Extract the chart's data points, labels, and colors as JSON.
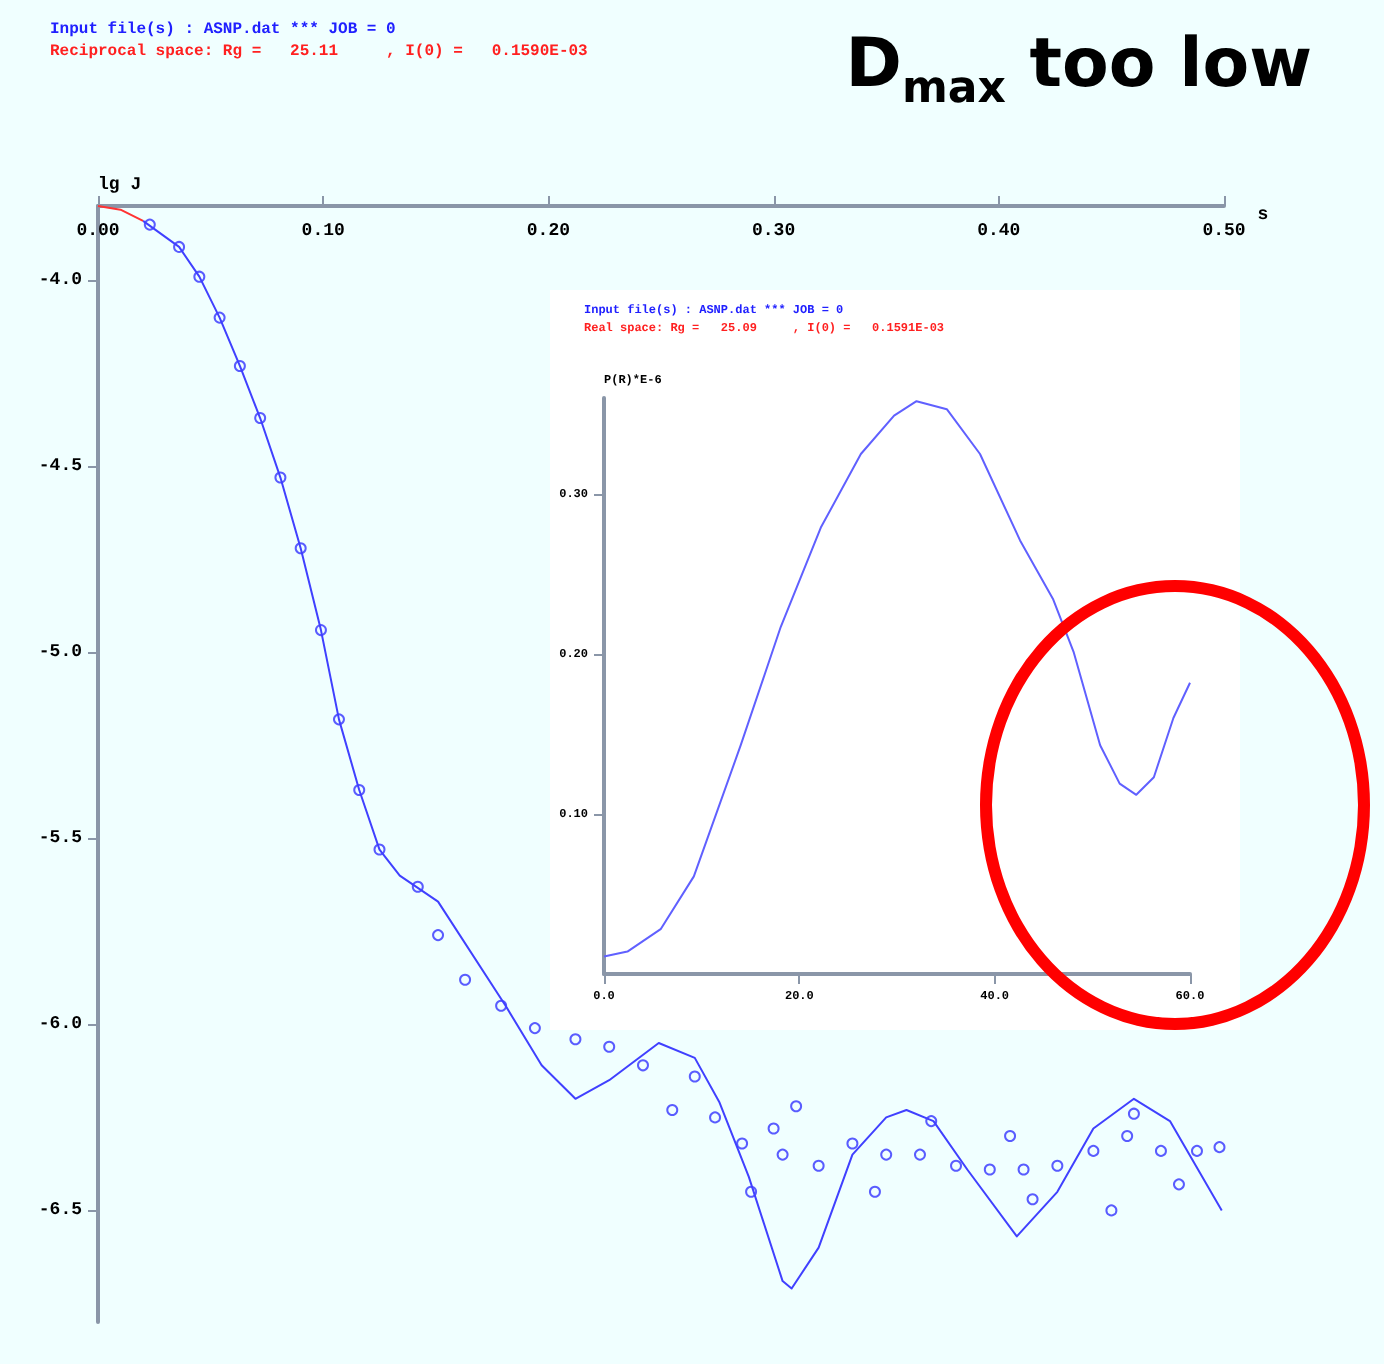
{
  "chart_data": [
    {
      "type": "scatter",
      "title": "Input file(s) : ASNP.dat *** JOB = 0",
      "subtitle": "Reciprocal space: Rg =   25.11     , I(0) =   0.1590E-03",
      "annotations": [
        "D$_{max}$ too low"
      ],
      "xlabel": "s",
      "ylabel": "lg J",
      "xlim": [
        0,
        0.5
      ],
      "ylim": [
        -6.8,
        -3.8
      ],
      "xticks": [
        {
          "value": 0,
          "label": "0.00"
        },
        {
          "value": 0.1,
          "label": "0.10"
        },
        {
          "value": 0.2,
          "label": "0.20"
        },
        {
          "value": 0.3,
          "label": "0.30"
        },
        {
          "value": 0.4,
          "label": "0.40"
        },
        {
          "value": 0.5,
          "label": "0.50"
        }
      ],
      "yticks": [
        {
          "value": -4,
          "label": "-4.0"
        },
        {
          "value": -4.5,
          "label": "-4.5"
        },
        {
          "value": -5,
          "label": "-5.0"
        },
        {
          "value": -5.5,
          "label": "-5.5"
        },
        {
          "value": -6,
          "label": "-6.0"
        },
        {
          "value": -6.5,
          "label": "-6.5"
        }
      ],
      "series": [
        {
          "type": "scatter",
          "marker": "circle",
          "color": "#3333ff",
          "x": [
            0.023,
            0.036,
            0.045,
            0.054,
            0.063,
            0.072,
            0.081,
            0.09,
            0.099,
            0.107,
            0.116,
            0.125,
            0.142,
            0.151,
            0.163,
            0.179,
            0.194,
            0.212,
            0.227,
            0.242,
            0.255,
            0.265,
            0.274,
            0.286,
            0.29,
            0.3,
            0.304,
            0.31,
            0.32,
            0.335,
            0.345,
            0.35,
            0.365,
            0.37,
            0.381,
            0.396,
            0.405,
            0.411,
            0.415,
            0.426,
            0.442,
            0.45,
            0.457,
            0.46,
            0.472,
            0.48,
            0.488,
            0.498
          ],
          "values": [
            -3.85,
            -3.91,
            -3.99,
            -4.1,
            -4.23,
            -4.37,
            -4.53,
            -4.72,
            -4.94,
            -5.18,
            -5.37,
            -5.53,
            -5.63,
            -5.76,
            -5.88,
            -5.95,
            -6.01,
            -6.04,
            -6.06,
            -6.11,
            -6.23,
            -6.14,
            -6.25,
            -6.32,
            -6.45,
            -6.28,
            -6.35,
            -6.22,
            -6.38,
            -6.32,
            -6.45,
            -6.35,
            -6.35,
            -6.26,
            -6.38,
            -6.39,
            -6.3,
            -6.39,
            -6.47,
            -6.38,
            -6.34,
            -6.5,
            -6.3,
            -6.24,
            -6.34,
            -6.43,
            -6.34,
            -6.33
          ]
        },
        {
          "type": "line",
          "marker": "none",
          "color": "#4040ff",
          "x": [
            0.02,
            0.036,
            0.045,
            0.054,
            0.063,
            0.072,
            0.081,
            0.09,
            0.099,
            0.107,
            0.116,
            0.125,
            0.134,
            0.151,
            0.181,
            0.197,
            0.212,
            0.227,
            0.249,
            0.265,
            0.276,
            0.289,
            0.304,
            0.308,
            0.32,
            0.335,
            0.35,
            0.359,
            0.371,
            0.386,
            0.408,
            0.426,
            0.442,
            0.46,
            0.476,
            0.499
          ],
          "values": [
            -3.84,
            -3.91,
            -3.99,
            -4.1,
            -4.23,
            -4.37,
            -4.53,
            -4.72,
            -4.94,
            -5.18,
            -5.37,
            -5.53,
            -5.6,
            -5.67,
            -5.95,
            -6.11,
            -6.2,
            -6.15,
            -6.05,
            -6.09,
            -6.21,
            -6.41,
            -6.69,
            -6.71,
            -6.6,
            -6.35,
            -6.25,
            -6.23,
            -6.26,
            -6.39,
            -6.57,
            -6.45,
            -6.28,
            -6.2,
            -6.26,
            -6.5
          ]
        },
        {
          "type": "line",
          "marker": "none",
          "color": "#ff3333",
          "x": [
            0,
            0.01,
            0.02
          ],
          "values": [
            -3.8,
            -3.81,
            -3.84
          ]
        }
      ]
    },
    {
      "type": "line",
      "title": "Input file(s) : ASNP.dat *** JOB = 0",
      "subtitle": "Real space: Rg =   25.09     , I(0) =   0.1591E-03",
      "ylabel": "P(R)*E-6",
      "xlim": [
        0,
        60
      ],
      "ylim": [
        0,
        0.36
      ],
      "xticks": [
        {
          "value": 0,
          "label": "0.0"
        },
        {
          "value": 20,
          "label": "20.0"
        },
        {
          "value": 40,
          "label": "40.0"
        },
        {
          "value": 60,
          "label": "60.0"
        }
      ],
      "yticks": [
        {
          "value": 0.1,
          "label": "0.10"
        },
        {
          "value": 0.2,
          "label": "0.20"
        },
        {
          "value": 0.3,
          "label": "0.30"
        }
      ],
      "series": [
        {
          "marker": "none",
          "color": "#6060ff",
          "x": [
            0,
            2.4,
            5.8,
            9.2,
            14.0,
            18.1,
            22.2,
            26.3,
            29.7,
            32.0,
            35.1,
            38.5,
            42.6,
            46.0,
            48.1,
            50.8,
            52.8,
            54.5,
            56.3,
            58.3,
            60.0
          ],
          "values": [
            0.011,
            0.014,
            0.028,
            0.061,
            0.143,
            0.217,
            0.279,
            0.325,
            0.349,
            0.358,
            0.353,
            0.325,
            0.271,
            0.234,
            0.201,
            0.143,
            0.119,
            0.112,
            0.123,
            0.16,
            0.182
          ]
        }
      ]
    }
  ]
}
